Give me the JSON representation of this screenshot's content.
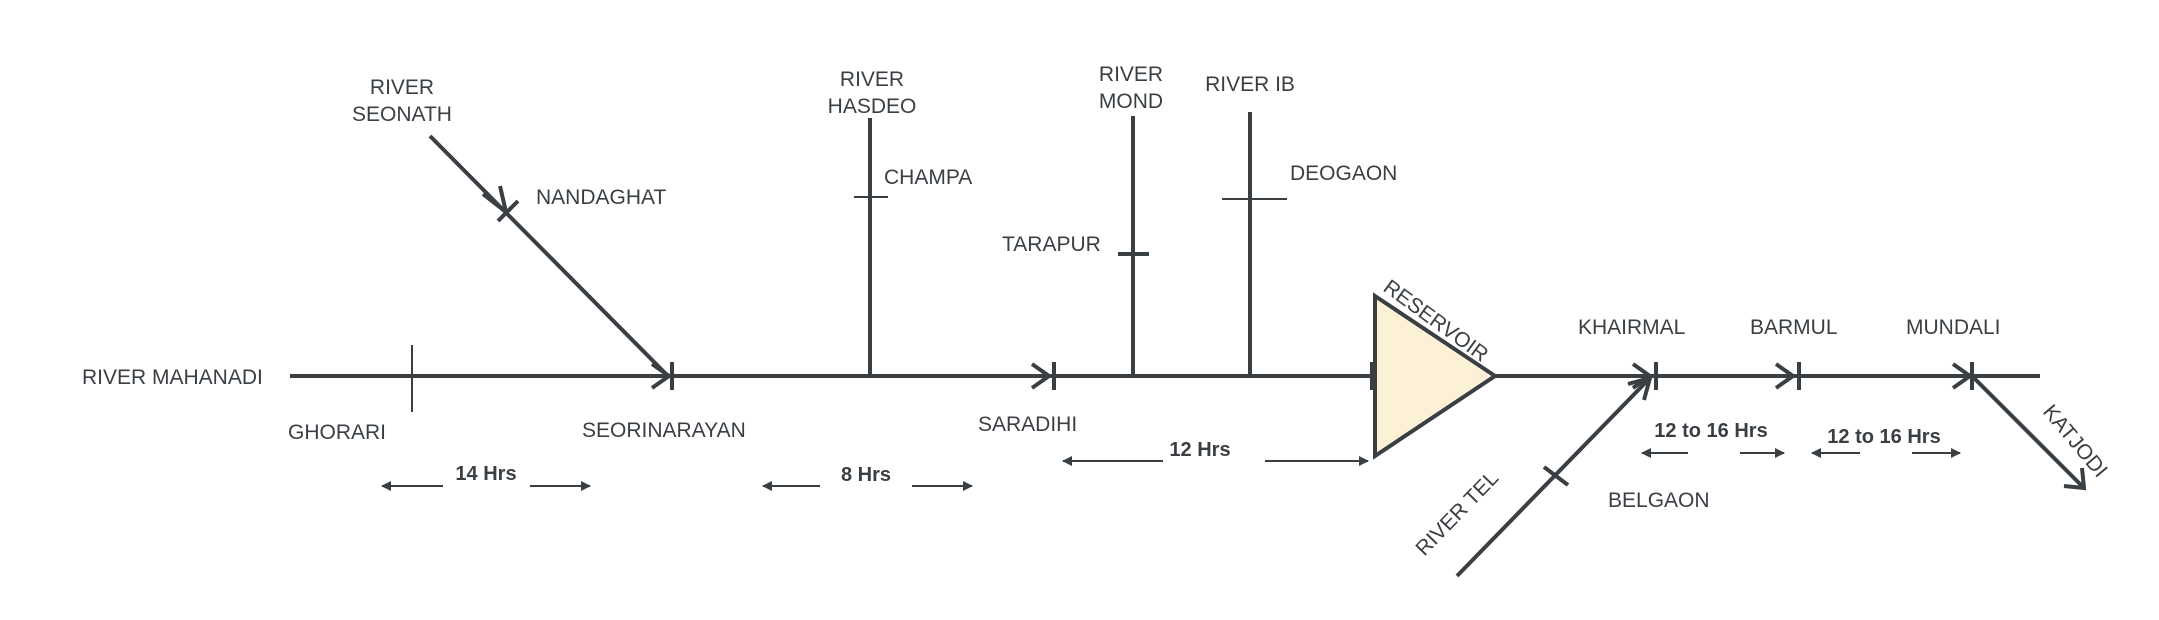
{
  "main_river": "RIVER MAHANADI",
  "tributaries": {
    "seonath": [
      "RIVER",
      "SEONATH"
    ],
    "hasdeo": [
      "RIVER",
      "HASDEO"
    ],
    "mond": [
      "RIVER",
      "MOND"
    ],
    "ib": "RIVER IB",
    "tel": "RIVER TEL"
  },
  "stations": {
    "ghorari": "GHORARI",
    "nandaghat": "NANDAGHAT",
    "seorinarayan": "SEORINARAYAN",
    "champa": "CHAMPA",
    "saradihi": "SARADIHI",
    "tarapur": "TARAPUR",
    "deogaon": "DEOGAON",
    "khairmal": "KHAIRMAL",
    "belgaon": "BELGAON",
    "barmul": "BARMUL",
    "mundali": "MUNDALI",
    "katjodi": "KATJODI"
  },
  "reservoir": "RESERVOIR",
  "travel_times": {
    "ghorari_seorinarayan": "14 Hrs",
    "seorinarayan_saradihi": "8 Hrs",
    "saradihi_reservoir": "12 Hrs",
    "khairmal_barmul": "12 to 16 Hrs",
    "barmul_mundali": "12 to 16 Hrs"
  },
  "colors": {
    "line": "#3a3f44",
    "reservoir_fill": "#fcf1d6"
  }
}
